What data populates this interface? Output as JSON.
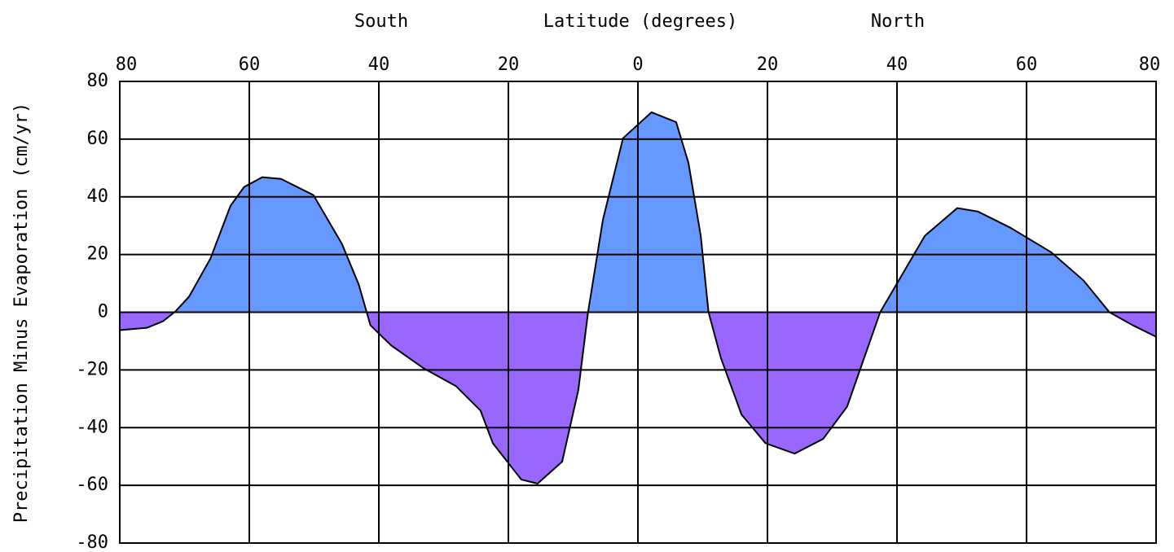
{
  "chart_data": {
    "type": "area",
    "title": "Latitude (degrees)",
    "x_label_left": "South",
    "x_label_right": "North",
    "y_label": "Precipitation Minus Evaporation (cm/yr)",
    "xlim": [
      -80,
      80
    ],
    "xticks": [
      {
        "value": -80,
        "label": "80"
      },
      {
        "value": -60,
        "label": "60"
      },
      {
        "value": -40,
        "label": "40"
      },
      {
        "value": -20,
        "label": "20"
      },
      0,
      20,
      40,
      60,
      80
    ],
    "ylim": [
      -80,
      80
    ],
    "yticks": [
      -80,
      -60,
      -40,
      -20,
      0,
      20,
      40,
      60,
      80
    ],
    "grid": true,
    "series": [
      {
        "color": "#6699ff",
        "negative_color": "#9966ff",
        "x": [
          -80,
          -75.8,
          -73.3,
          -71.4,
          -69.3,
          -66,
          -62.9,
          -60.8,
          -58,
          -55.1,
          -50.1,
          -45.7,
          -43.1,
          -41.3,
          -38.1,
          -33.1,
          -28.1,
          -24.3,
          -22.4,
          -18,
          -15.5,
          -11.7,
          -9.2,
          -7.7,
          -5.4,
          -2.3,
          2.1,
          5.9,
          7.8,
          9.7,
          10.9,
          12.8,
          16,
          19.7,
          24.2,
          28.6,
          32.3,
          37.4,
          39.9,
          44.3,
          49.3,
          52.5,
          57.5,
          63.8,
          68.8,
          72.8,
          76.4,
          80
        ],
        "values": [
          -6.2,
          -5.4,
          -3.1,
          0.3,
          5.4,
          18.6,
          36.9,
          43.4,
          46.8,
          46.2,
          40.6,
          23.7,
          9.6,
          -4.5,
          -11.5,
          -19.4,
          -25.6,
          -34.1,
          -45.4,
          -58,
          -59.4,
          -51.8,
          -27,
          0,
          32.1,
          60.3,
          69.3,
          65.9,
          51.8,
          26.5,
          0,
          -15.8,
          -35.5,
          -45.4,
          -49,
          -43.9,
          -32.7,
          0,
          9.6,
          26.5,
          36.1,
          34.9,
          29.3,
          20.8,
          11,
          0,
          -4.5,
          -8.5
        ]
      }
    ]
  }
}
